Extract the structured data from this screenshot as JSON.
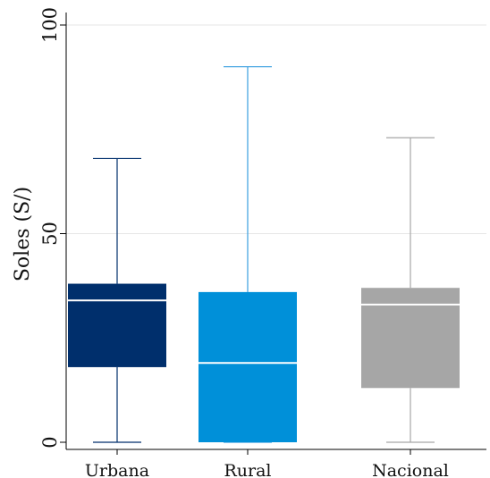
{
  "chart_data": {
    "type": "box",
    "ylabel": "Soles (S/)",
    "ylim": [
      0,
      100
    ],
    "yticks": [
      0,
      50,
      100
    ],
    "grid": true,
    "categories": [
      "Urbana",
      "Rural",
      "Nacional"
    ],
    "boxes": [
      {
        "label": "Urbana",
        "min": 0,
        "q1": 18,
        "median": 34,
        "q3": 38,
        "max": 68,
        "color": "#002f6c",
        "whisker_color": "#002f6c",
        "median_color": "#ffffff"
      },
      {
        "label": "Rural",
        "min": 0,
        "q1": 0,
        "median": 19,
        "q3": 36,
        "max": 90,
        "color": "#0090d9",
        "whisker_color": "#3a9fe0",
        "median_color": "#ffffff"
      },
      {
        "label": "Nacional",
        "min": 0,
        "q1": 13,
        "median": 33,
        "q3": 37,
        "max": 73,
        "color": "#a6a6a6",
        "whisker_color": "#a6a6a6",
        "median_color": "#ffffff"
      }
    ]
  }
}
